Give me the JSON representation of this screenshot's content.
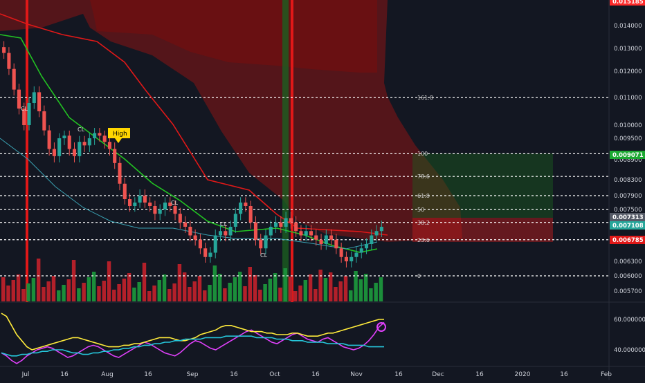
{
  "chart_data": [
    {
      "type": "candlestick",
      "title": "",
      "x_ticks": [
        "Jul",
        "16",
        "Aug",
        "16",
        "Sep",
        "16",
        "Oct",
        "16",
        "Nov",
        "16",
        "Dec",
        "16",
        "2020",
        "16",
        "Feb"
      ],
      "y_ticks": [
        "0.014000",
        "0.013000",
        "0.012000",
        "0.011000",
        "0.010000",
        "0.009500",
        "0.008900",
        "0.008300",
        "0.007900",
        "0.007500",
        "0.006300",
        "0.006000",
        "0.005700"
      ],
      "price_labels": [
        {
          "text": "0.015185",
          "color": "#ff2a2a"
        },
        {
          "text": "0.009071",
          "color": "#1ca832"
        },
        {
          "text": "0.007313",
          "color": "#555a66"
        },
        {
          "text": "0.007108",
          "color": "#26a69a"
        },
        {
          "text": "0.006785",
          "color": "#e01818"
        }
      ],
      "fib_levels": [
        {
          "label": "161.8",
          "value": 0.011
        },
        {
          "label": "100",
          "value": 0.00907
        },
        {
          "label": "78.6",
          "value": 0.0084
        },
        {
          "label": "61.8",
          "value": 0.0079
        },
        {
          "label": "50",
          "value": 0.0075
        },
        {
          "label": "38.2",
          "value": 0.0072
        },
        {
          "label": "23.6",
          "value": 0.0068
        },
        {
          "label": "0",
          "value": 0.006
        }
      ],
      "annotations": [
        "High",
        "CL",
        "CL",
        "CL",
        "CL",
        "CL"
      ],
      "close": [
        0.0128,
        0.0121,
        0.0113,
        0.0106,
        0.01,
        0.0108,
        0.0112,
        0.0105,
        0.0098,
        0.0092,
        0.009,
        0.0095,
        0.0096,
        0.0092,
        0.009,
        0.0094,
        0.0093,
        0.0095,
        0.0097,
        0.0096,
        0.0094,
        0.0092,
        0.0088,
        0.0082,
        0.0078,
        0.0076,
        0.0077,
        0.0079,
        0.0077,
        0.0076,
        0.0074,
        0.0075,
        0.0077,
        0.0076,
        0.0074,
        0.0072,
        0.0071,
        0.0069,
        0.0068,
        0.0066,
        0.0064,
        0.0065,
        0.0069,
        0.007,
        0.0069,
        0.0071,
        0.0074,
        0.0077,
        0.0076,
        0.0072,
        0.0068,
        0.0066,
        0.0069,
        0.0071,
        0.0072,
        0.0071,
        0.0073,
        0.0072,
        0.007,
        0.0069,
        0.007,
        0.0069,
        0.0068,
        0.0067,
        0.0069,
        0.0068,
        0.0066,
        0.0064,
        0.0063,
        0.0064,
        0.0065,
        0.0066,
        0.0067,
        0.0069,
        0.007,
        0.0071
      ]
    },
    {
      "type": "line",
      "title": "",
      "y_ticks": [
        "60.000000",
        "40.000000"
      ],
      "series": [
        {
          "color": "#e040fb",
          "values": [
            38,
            36,
            33,
            31,
            33,
            36,
            38,
            40,
            41,
            42,
            41,
            39,
            37,
            35,
            36,
            38,
            40,
            42,
            43,
            42,
            40,
            38,
            36,
            35,
            37,
            39,
            41,
            43,
            45,
            44,
            42,
            40,
            38,
            37,
            36,
            38,
            41,
            44,
            46,
            45,
            43,
            41,
            40,
            42,
            44,
            46,
            48,
            50,
            52,
            53,
            51,
            49,
            47,
            45,
            44,
            46,
            48,
            50,
            51,
            49,
            47,
            46,
            45,
            47,
            48,
            46,
            44,
            42,
            41,
            40,
            41,
            43,
            46,
            50,
            55,
            58
          ]
        },
        {
          "color": "#ffeb3b",
          "values": [
            64,
            62,
            56,
            50,
            46,
            42,
            40,
            41,
            42,
            43,
            44,
            45,
            46,
            47,
            48,
            48,
            47,
            46,
            45,
            44,
            43,
            42,
            42,
            42,
            43,
            43,
            44,
            44,
            45,
            46,
            47,
            48,
            48,
            48,
            47,
            46,
            46,
            47,
            48,
            50,
            51,
            52,
            53,
            55,
            56,
            56,
            55,
            54,
            53,
            52,
            52,
            52,
            51,
            51,
            50,
            50,
            50,
            51,
            51,
            50,
            49,
            49,
            49,
            50,
            51,
            51,
            52,
            53,
            54,
            55,
            56,
            57,
            58,
            59,
            60,
            60
          ]
        },
        {
          "color": "#26c6da",
          "values": [
            38,
            37,
            36,
            36,
            37,
            37,
            38,
            38,
            39,
            39,
            40,
            40,
            40,
            39,
            38,
            38,
            37,
            37,
            38,
            38,
            39,
            39,
            40,
            40,
            41,
            41,
            42,
            42,
            43,
            43,
            44,
            44,
            45,
            45,
            46,
            46,
            47,
            47,
            47,
            47,
            48,
            48,
            48,
            48,
            49,
            49,
            49,
            49,
            49,
            49,
            48,
            48,
            48,
            48,
            47,
            47,
            47,
            46,
            46,
            46,
            45,
            45,
            45,
            45,
            44,
            44,
            44,
            44,
            43,
            43,
            43,
            43,
            42,
            42,
            42,
            42
          ]
        }
      ]
    }
  ]
}
